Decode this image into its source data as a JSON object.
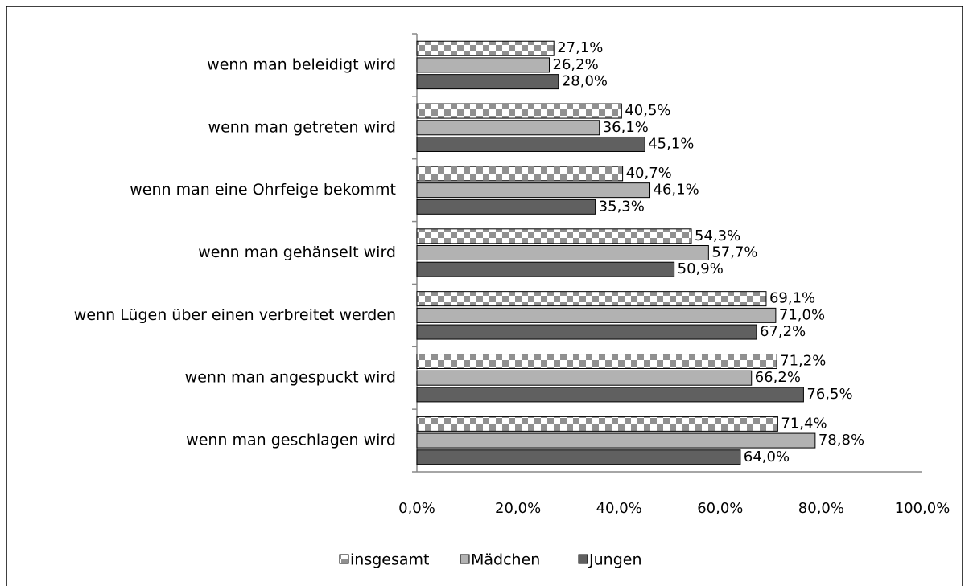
{
  "chart_data": {
    "type": "bar",
    "orientation": "horizontal",
    "categories": [
      "wenn man beleidigt wird",
      "wenn man getreten wird",
      "wenn man eine Ohrfeige bekommt",
      "wenn man gehänselt wird",
      "wenn Lügen über einen verbreitet werden",
      "wenn man angespuckt wird",
      "wenn man geschlagen wird"
    ],
    "series": [
      {
        "name": "insgesamt",
        "color": "#808080",
        "pattern": "checkered",
        "values": [
          27.1,
          40.5,
          40.7,
          54.3,
          69.1,
          71.2,
          71.4
        ],
        "value_labels": [
          "27,1%",
          "40,5%",
          "40,7%",
          "54,3%",
          "69,1%",
          "71,2%",
          "71,4%"
        ]
      },
      {
        "name": "Mädchen",
        "color": "#b2b2b2",
        "values": [
          26.2,
          36.1,
          46.1,
          57.7,
          71.0,
          66.2,
          78.8
        ],
        "value_labels": [
          "26,2%",
          "36,1%",
          "46,1%",
          "57,7%",
          "71,0%",
          "66,2%",
          "78,8%"
        ]
      },
      {
        "name": "Jungen",
        "color": "#606060",
        "values": [
          28.0,
          45.1,
          35.3,
          50.9,
          67.2,
          76.5,
          64.0
        ],
        "value_labels": [
          "28,0%",
          "45,1%",
          "35,3%",
          "50,9%",
          "67,2%",
          "76,5%",
          "64,0%"
        ]
      }
    ],
    "xlim": [
      0,
      100
    ],
    "xticks": [
      {
        "value": 0,
        "label": "0,0%"
      },
      {
        "value": 20,
        "label": "20,0%"
      },
      {
        "value": 40,
        "label": "40,0%"
      },
      {
        "value": 60,
        "label": "60,0%"
      },
      {
        "value": 80,
        "label": "80,0%"
      },
      {
        "value": 100,
        "label": "100,0%"
      }
    ],
    "legend": "bottom"
  }
}
